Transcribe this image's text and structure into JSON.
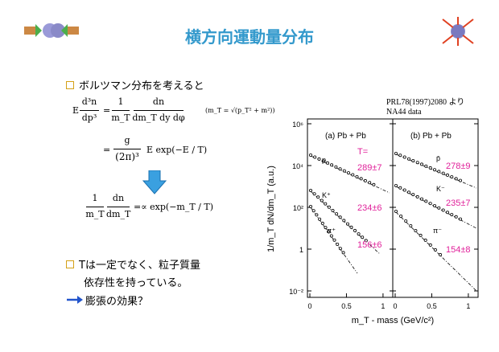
{
  "title": "横方向運動量分布",
  "bullets": [
    {
      "text": "ボルツマン分布を考えると"
    },
    {
      "text_line1": "Tは一定でなく、粒子質量",
      "text_line2": "依存性を持っている。"
    }
  ],
  "arrow_note": "膨張の効果？",
  "equations": {
    "lhs_E": "E",
    "f1_num": "d³n",
    "f1_den": "dp³",
    "eq": "=",
    "f2_num": "1",
    "f2_den": "m_T",
    "f3_num": "dn",
    "f3_den": "dm_T dy dφ",
    "mt_def": "(m_T = √(p_T² + m²))",
    "line2_num": "g",
    "line2_den": "(2π)³",
    "line2_rest": "E exp(−E / T)",
    "line3_num1": "1",
    "line3_den1": "m_T",
    "line3_num2": "dn",
    "line3_den2": "dm_T",
    "line3_rest": "=∝ exp(−m_T / T)"
  },
  "reference": {
    "line1": "PRL78(1997)2080 より",
    "line2": "NA44 data"
  },
  "chart_data": {
    "type": "scatter",
    "y_scale": "log",
    "ylabel": "1/m_T dN/dm_T (a.u.)",
    "xlabel": "m_T - mass (GeV/c²)",
    "y_ticks": [
      "10⁶",
      "10⁴",
      "10²",
      "1",
      "10⁻²"
    ],
    "panels": [
      {
        "label": "(a) Pb + Pb",
        "x_ticks": [
          "0",
          "0.5",
          "1"
        ],
        "xlim": [
          0,
          1.1
        ],
        "T_label": "T=",
        "species": [
          {
            "name": "p",
            "T": "289±7"
          },
          {
            "name": "K⁺",
            "T": "234±6"
          },
          {
            "name": "π⁺",
            "T": "156±6"
          }
        ]
      },
      {
        "label": "(b) Pb + Pb",
        "x_ticks": [
          "0",
          "0.5",
          "1"
        ],
        "xlim": [
          0,
          1.1
        ],
        "species": [
          {
            "name": "p̄",
            "T": "278±9"
          },
          {
            "name": "K⁻",
            "T": "235±7"
          },
          {
            "name": "π⁻",
            "T": "154±8"
          }
        ]
      }
    ]
  },
  "colors": {
    "title": "#3399cc",
    "bullet": "#d4a017",
    "T_values": "#e0209a",
    "down_arrow": "#3aa0e0",
    "right_arrow": "#2255cc"
  }
}
